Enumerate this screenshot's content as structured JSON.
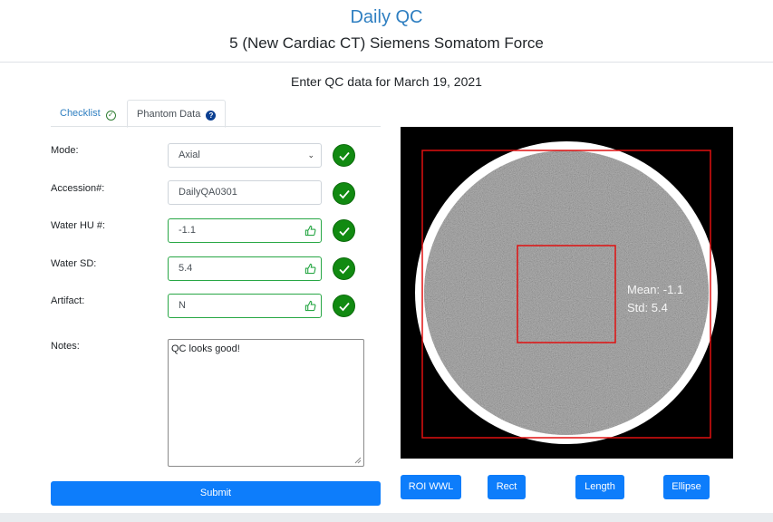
{
  "header": {
    "title": "Daily QC",
    "subtitle": "5 (New Cardiac CT) Siemens Somatom Force",
    "qc_date_title": "Enter QC data for March 19, 2021"
  },
  "tabs": [
    {
      "label": "Checklist",
      "icon": "check-circle-icon",
      "active": false
    },
    {
      "label": "Phantom Data",
      "icon": "help-circle-icon",
      "active": true
    }
  ],
  "form": {
    "mode": {
      "label": "Mode:",
      "value": "Axial"
    },
    "accession": {
      "label": "Accession#:",
      "value": "DailyQA0301"
    },
    "water_hu": {
      "label": "Water HU #:",
      "value": "-1.1"
    },
    "water_sd": {
      "label": "Water SD:",
      "value": "5.4"
    },
    "artifact": {
      "label": "Artifact:",
      "value": "N"
    },
    "notes": {
      "label": "Notes:",
      "value": "QC looks good!"
    },
    "submit_label": "Submit"
  },
  "viewer": {
    "roi_mean": "Mean: -1.1",
    "roi_std": "Std: 5.4"
  },
  "tools": {
    "roi_wwl": "ROI WWL",
    "rect": "Rect",
    "length": "Length",
    "ellipse": "Ellipse"
  },
  "colors": {
    "accent": "#0d7dfb",
    "title": "#2f7fc1",
    "ok": "#118a11",
    "roi": "#e01010"
  }
}
